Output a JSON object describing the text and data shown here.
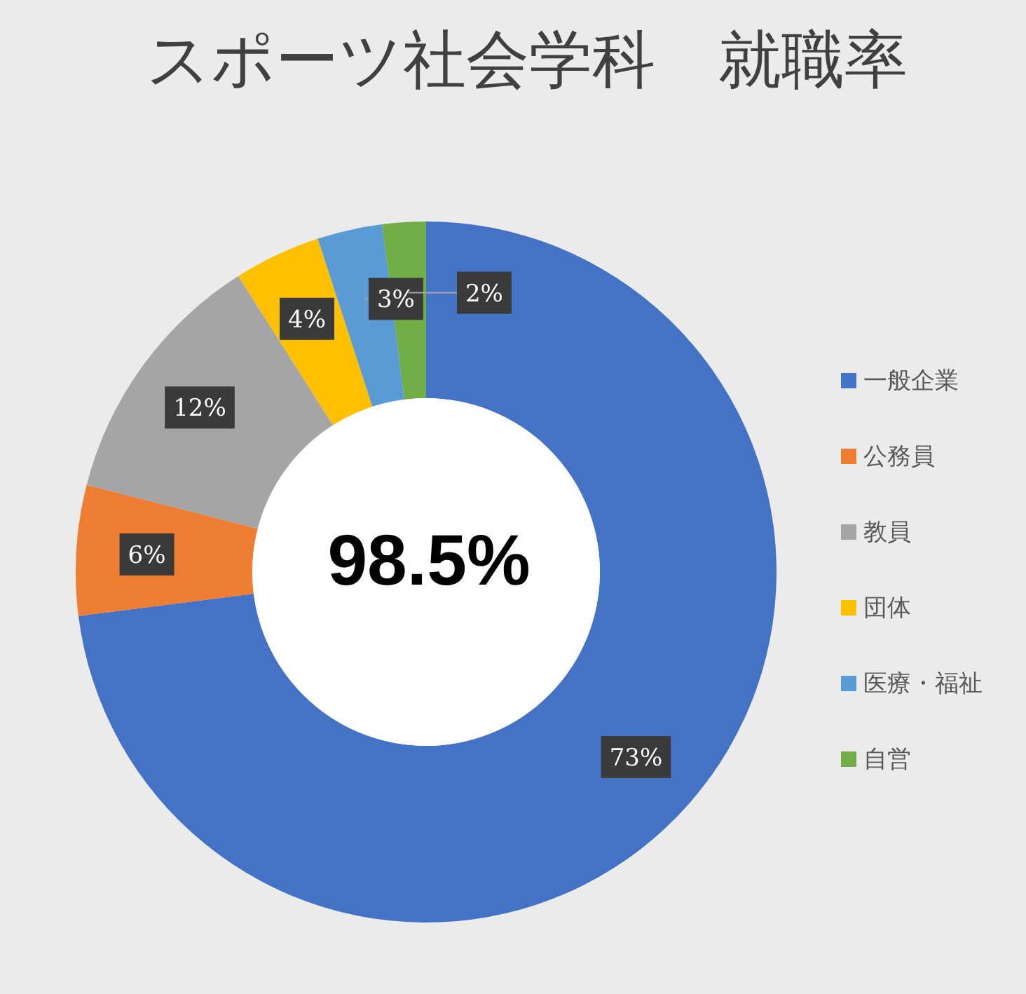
{
  "chart_data": {
    "type": "donut",
    "title": "スポーツ社会学科　就職率",
    "categories": [
      "一般企業",
      "公務員",
      "教員",
      "団体",
      "医療・福祉",
      "自営"
    ],
    "values": [
      73,
      6,
      12,
      4,
      3,
      2
    ],
    "colors": [
      "#4472c4",
      "#ed7d31",
      "#a5a5a5",
      "#ffc000",
      "#5b9bd5",
      "#70ad47"
    ],
    "value_labels": [
      "73%",
      "6%",
      "12%",
      "4%",
      "3%",
      "2%"
    ],
    "legend": "right",
    "annotations": [
      "98.5%"
    ]
  }
}
